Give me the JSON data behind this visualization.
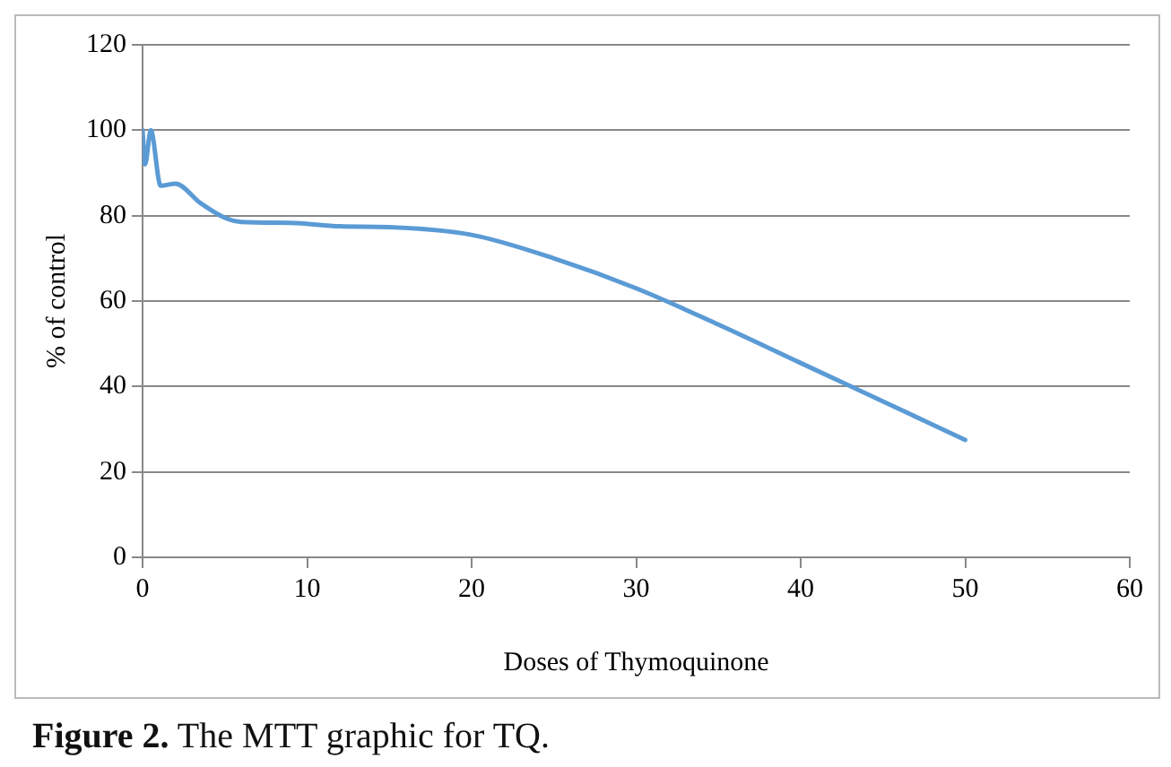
{
  "chart_data": {
    "type": "line",
    "xlabel": "Doses of Thymoquinone",
    "ylabel": "% of control",
    "x": [
      0,
      0.15,
      0.5,
      1.1,
      2,
      3.5,
      5,
      6,
      9,
      12,
      15,
      20,
      25,
      30,
      35,
      40,
      45,
      50
    ],
    "series": [
      {
        "color": "#5b9bd5",
        "values": [
          100,
          92,
          100,
          87,
          87.5,
          83,
          79.5,
          78.5,
          78.3,
          77.5,
          77.3,
          75.5,
          70,
          63,
          54.5,
          45.5,
          36.5,
          27.5
        ]
      }
    ],
    "xlim": [
      0,
      60
    ],
    "xticks": [
      0,
      10,
      20,
      30,
      40,
      50,
      60
    ],
    "ylim": [
      0,
      120
    ],
    "yticks": [
      0,
      20,
      40,
      60,
      80,
      100,
      120
    ],
    "grid": "y",
    "legend": false,
    "marker": "none",
    "line_style": "solid",
    "annotations": [
      "Figure 2. The MTT graphic for TQ."
    ]
  }
}
